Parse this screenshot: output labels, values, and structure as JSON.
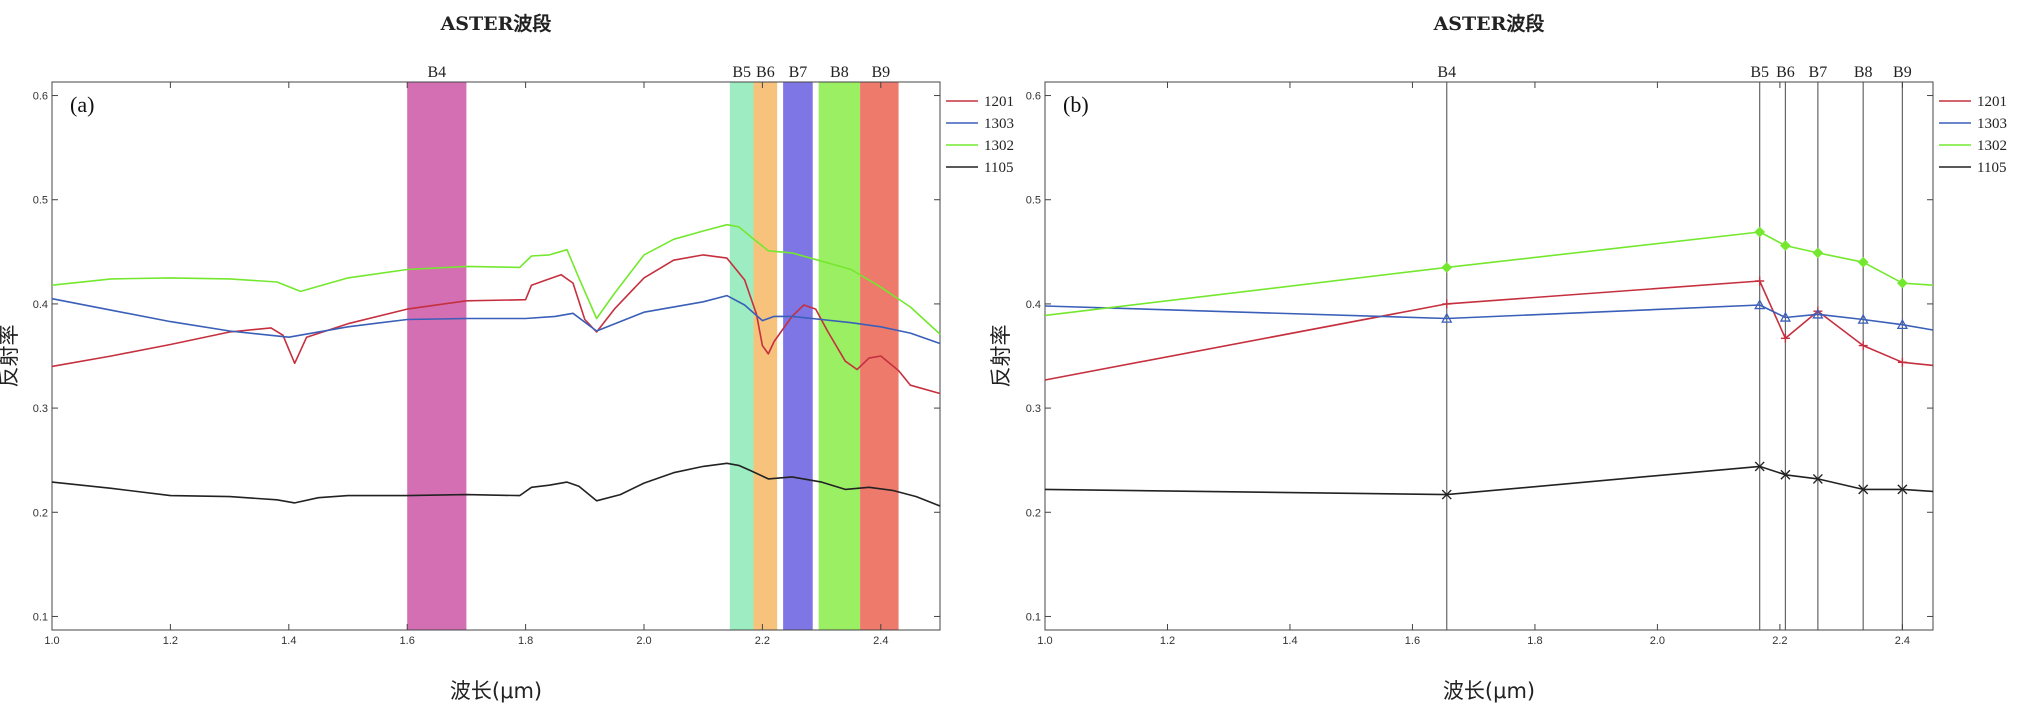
{
  "colors": {
    "1201": "#c5303f",
    "1303": "#3a5fb8",
    "1302": "#74e82f",
    "1105": "#222222",
    "band_B4": "#d56fb3",
    "band_B5": "#9eecc2",
    "band_B6": "#f7c27c",
    "band_B7": "#7e76e4",
    "band_B8": "#9bef63",
    "band_B9": "#ee7a6c",
    "frame": "#444444",
    "vline": "#666666"
  },
  "chart_data": [
    {
      "type": "line",
      "panel_label": "(a)",
      "title": "ASTER波段",
      "xlabel": "波长(μm)",
      "ylabel": "反射率",
      "xlim": [
        1.0,
        2.5
      ],
      "ylim": [
        0.087,
        0.613
      ],
      "xticks": [
        "1.0",
        "1.2",
        "1.4",
        "1.6",
        "1.8",
        "2.0",
        "2.2",
        "2.4"
      ],
      "yticks": [
        "0.1",
        "0.2",
        "0.3",
        "0.4",
        "0.5",
        "0.6"
      ],
      "legend_position": "right",
      "bands": [
        {
          "name": "B4",
          "range": [
            1.6,
            1.7
          ],
          "label_x": 1.65
        },
        {
          "name": "B5",
          "range": [
            2.145,
            2.185
          ],
          "label_x": 2.165
        },
        {
          "name": "B6",
          "range": [
            2.185,
            2.225
          ],
          "label_x": 2.205
        },
        {
          "name": "B7",
          "range": [
            2.235,
            2.285
          ],
          "label_x": 2.26
        },
        {
          "name": "B8",
          "range": [
            2.295,
            2.365
          ],
          "label_x": 2.33
        },
        {
          "name": "B9",
          "range": [
            2.365,
            2.43
          ],
          "label_x": 2.4
        }
      ],
      "series": [
        {
          "name": "1201",
          "x": [
            1.0,
            1.1,
            1.2,
            1.3,
            1.37,
            1.39,
            1.41,
            1.43,
            1.5,
            1.6,
            1.7,
            1.8,
            1.81,
            1.84,
            1.86,
            1.88,
            1.9,
            1.92,
            1.95,
            2.0,
            2.05,
            2.1,
            2.14,
            2.17,
            2.19,
            2.2,
            2.21,
            2.22,
            2.25,
            2.27,
            2.29,
            2.31,
            2.34,
            2.36,
            2.38,
            2.4,
            2.43,
            2.45,
            2.5
          ],
          "y": [
            0.34,
            0.35,
            0.361,
            0.373,
            0.377,
            0.37,
            0.343,
            0.368,
            0.381,
            0.395,
            0.403,
            0.404,
            0.418,
            0.424,
            0.428,
            0.42,
            0.385,
            0.373,
            0.395,
            0.425,
            0.442,
            0.447,
            0.444,
            0.423,
            0.39,
            0.36,
            0.352,
            0.364,
            0.388,
            0.399,
            0.395,
            0.374,
            0.345,
            0.337,
            0.348,
            0.35,
            0.336,
            0.322,
            0.314
          ]
        },
        {
          "name": "1303",
          "x": [
            1.0,
            1.1,
            1.2,
            1.3,
            1.4,
            1.5,
            1.6,
            1.7,
            1.8,
            1.85,
            1.88,
            1.92,
            2.0,
            2.1,
            2.14,
            2.17,
            2.2,
            2.22,
            2.25,
            2.3,
            2.35,
            2.4,
            2.45,
            2.5
          ],
          "y": [
            0.405,
            0.394,
            0.383,
            0.374,
            0.368,
            0.378,
            0.385,
            0.386,
            0.386,
            0.388,
            0.391,
            0.374,
            0.392,
            0.402,
            0.408,
            0.399,
            0.384,
            0.388,
            0.388,
            0.385,
            0.382,
            0.378,
            0.372,
            0.362
          ]
        },
        {
          "name": "1302",
          "x": [
            1.0,
            1.1,
            1.2,
            1.3,
            1.38,
            1.42,
            1.5,
            1.6,
            1.7,
            1.79,
            1.81,
            1.84,
            1.87,
            1.89,
            1.92,
            1.95,
            2.0,
            2.05,
            2.1,
            2.14,
            2.16,
            2.19,
            2.21,
            2.25,
            2.3,
            2.35,
            2.4,
            2.45,
            2.5
          ],
          "y": [
            0.418,
            0.424,
            0.425,
            0.424,
            0.421,
            0.412,
            0.425,
            0.433,
            0.436,
            0.435,
            0.446,
            0.447,
            0.452,
            0.425,
            0.386,
            0.41,
            0.447,
            0.462,
            0.47,
            0.476,
            0.474,
            0.46,
            0.451,
            0.449,
            0.441,
            0.433,
            0.416,
            0.397,
            0.371
          ]
        },
        {
          "name": "1105",
          "x": [
            1.0,
            1.1,
            1.2,
            1.3,
            1.38,
            1.41,
            1.45,
            1.5,
            1.6,
            1.7,
            1.79,
            1.81,
            1.84,
            1.87,
            1.89,
            1.92,
            1.96,
            2.0,
            2.05,
            2.1,
            2.14,
            2.16,
            2.18,
            2.21,
            2.25,
            2.3,
            2.34,
            2.38,
            2.42,
            2.46,
            2.5
          ],
          "y": [
            0.229,
            0.223,
            0.216,
            0.215,
            0.212,
            0.209,
            0.214,
            0.216,
            0.216,
            0.217,
            0.216,
            0.224,
            0.226,
            0.229,
            0.225,
            0.211,
            0.217,
            0.228,
            0.238,
            0.244,
            0.247,
            0.245,
            0.24,
            0.232,
            0.234,
            0.229,
            0.222,
            0.224,
            0.221,
            0.215,
            0.206
          ]
        }
      ]
    },
    {
      "type": "line",
      "panel_label": "(b)",
      "title": "ASTER波段",
      "xlabel": "波长(μm)",
      "ylabel": "反射率",
      "xlim": [
        1.0,
        2.45
      ],
      "ylim": [
        0.087,
        0.613
      ],
      "xticks": [
        "1.0",
        "1.2",
        "1.4",
        "1.6",
        "1.8",
        "2.0",
        "2.2",
        "2.4"
      ],
      "yticks": [
        "0.1",
        "0.2",
        "0.3",
        "0.4",
        "0.5",
        "0.6"
      ],
      "legend_position": "right",
      "band_lines": [
        {
          "name": "B4",
          "x": 1.656
        },
        {
          "name": "B5",
          "x": 2.167
        },
        {
          "name": "B6",
          "x": 2.209
        },
        {
          "name": "B7",
          "x": 2.262
        },
        {
          "name": "B8",
          "x": 2.336
        },
        {
          "name": "B9",
          "x": 2.4
        }
      ],
      "series": [
        {
          "name": "1201",
          "marker": "plus",
          "x": [
            1.0,
            1.656,
            2.167,
            2.209,
            2.262,
            2.336,
            2.4,
            2.45
          ],
          "y": [
            0.327,
            0.4,
            0.422,
            0.367,
            0.393,
            0.36,
            0.344,
            0.341
          ]
        },
        {
          "name": "1303",
          "marker": "triangle",
          "x": [
            1.0,
            1.656,
            2.167,
            2.209,
            2.262,
            2.336,
            2.4,
            2.45
          ],
          "y": [
            0.398,
            0.386,
            0.399,
            0.387,
            0.39,
            0.385,
            0.38,
            0.375
          ]
        },
        {
          "name": "1302",
          "marker": "diamond",
          "x": [
            1.0,
            1.656,
            2.167,
            2.209,
            2.262,
            2.336,
            2.4,
            2.45
          ],
          "y": [
            0.389,
            0.435,
            0.469,
            0.456,
            0.449,
            0.44,
            0.42,
            0.418
          ]
        },
        {
          "name": "1105",
          "marker": "x",
          "x": [
            1.0,
            1.656,
            2.167,
            2.209,
            2.262,
            2.336,
            2.4,
            2.45
          ],
          "y": [
            0.222,
            0.217,
            0.244,
            0.236,
            0.232,
            0.222,
            0.222,
            0.22
          ]
        }
      ]
    }
  ]
}
